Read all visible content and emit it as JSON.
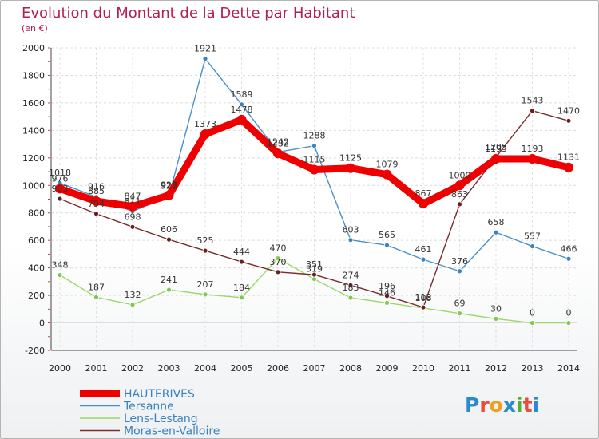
{
  "chart_data": {
    "type": "line",
    "title": "Evolution du Montant de la Dette par Habitant",
    "subtitle": "(en €)",
    "categories": [
      "2000",
      "2001",
      "2002",
      "2003",
      "2004",
      "2005",
      "2006",
      "2007",
      "2008",
      "2009",
      "2010",
      "2011",
      "2012",
      "2013",
      "2014"
    ],
    "ylim": [
      -200,
      2000
    ],
    "yticks": [
      -200,
      0,
      200,
      400,
      600,
      800,
      1000,
      1200,
      1400,
      1600,
      1800,
      2000
    ],
    "ytick_labels": [
      "-200",
      "0",
      "200",
      "400",
      "600",
      "800",
      "1000",
      "1200",
      "1400",
      "1600",
      "1800",
      "2000"
    ],
    "grid": true,
    "legend_position": "bottom-left",
    "series": [
      {
        "name": "Tersanne",
        "color": "#4a90c8",
        "point_color": "#3a82c0",
        "values": [
          1018,
          916,
          811,
          922,
          1921,
          1589,
          1242,
          1288,
          603,
          565,
          461,
          376,
          658,
          557,
          466
        ],
        "labels": [
          "1018",
          "916",
          "811",
          "922",
          "1921",
          "1589",
          "1242",
          "1288",
          "603",
          "565",
          "461",
          "376",
          "658",
          "557",
          "466"
        ]
      },
      {
        "name": "Lens-Lestang",
        "color": "#9ad86a",
        "point_color": "#80c850",
        "values": [
          348,
          187,
          132,
          241,
          207,
          184,
          470,
          319,
          183,
          146,
          108,
          69,
          30,
          0,
          0
        ],
        "labels": [
          "348",
          "187",
          "132",
          "241",
          "207",
          "184",
          "470",
          "319",
          "183",
          "146",
          "108",
          "69",
          "30",
          "0",
          "0"
        ]
      },
      {
        "name": "Moras-en-Valloire",
        "color": "#7a2c2c",
        "point_color": "#6a1e1e",
        "values": [
          903,
          794,
          698,
          606,
          525,
          444,
          370,
          351,
          274,
          196,
          113,
          863,
          1205,
          1543,
          1470
        ],
        "labels": [
          "903",
          "794",
          "698",
          "606",
          "525",
          "444",
          "370",
          "351",
          "274",
          "196",
          "113",
          "863",
          "1205",
          "1543",
          "1470"
        ]
      },
      {
        "name": "HAUTERIVES",
        "color": "#ee0000",
        "point_color": "#ee0000",
        "values": [
          976,
          885,
          847,
          928,
          1373,
          1478,
          1232,
          1115,
          1125,
          1079,
          867,
          1000,
          1193,
          1193,
          1131
        ],
        "labels": [
          "976",
          "885",
          "847",
          "928",
          "1373",
          "1478",
          "1232",
          "1115",
          "1125",
          "1079",
          "867",
          "1000",
          "1193",
          "1193",
          "1131"
        ]
      }
    ],
    "legend": [
      {
        "name": "HAUTERIVES",
        "color": "#ee0000",
        "text_color": "#3a82c0"
      },
      {
        "name": "Tersanne",
        "color": "#4a90c8",
        "text_color": "#3a82c0"
      },
      {
        "name": "Lens-Lestang",
        "color": "#9ad86a",
        "text_color": "#3a82c0"
      },
      {
        "name": "Moras-en-Valloire",
        "color": "#7a2c2c",
        "text_color": "#3a82c0"
      }
    ]
  },
  "logo": {
    "text": "Proxiti",
    "colors": [
      "#2a8ad0",
      "#e84c3c",
      "#f0a020",
      "#2a8ad0",
      "#50b030",
      "#e84c3c",
      "#2a8ad0"
    ]
  }
}
